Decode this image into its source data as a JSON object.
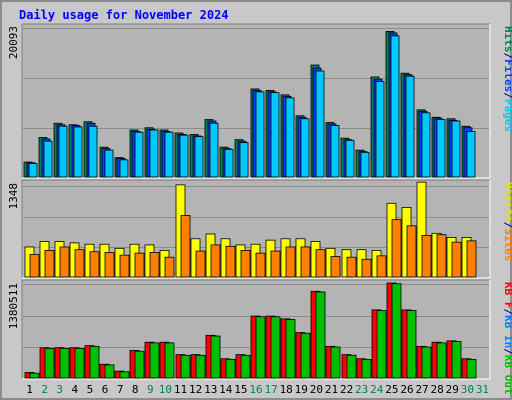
{
  "title": "Daily usage for November 2024",
  "colors": {
    "hits": "#00805c",
    "files": "#0040ff",
    "pages": "#00c8ff",
    "visits": "#ffff00",
    "sites": "#ff8000",
    "kb_out": "#00c000",
    "kb_in": "#0080ff",
    "kb_f": "#ff0000",
    "weekend_day": "#00805c",
    "weekday": "#000000"
  },
  "chart_data": {
    "type": "bar",
    "days": [
      "1",
      "2",
      "3",
      "4",
      "5",
      "6",
      "7",
      "8",
      "9",
      "10",
      "11",
      "12",
      "13",
      "14",
      "15",
      "16",
      "17",
      "18",
      "19",
      "20",
      "21",
      "22",
      "23",
      "24",
      "25",
      "26",
      "27",
      "28",
      "29",
      "30",
      "31"
    ],
    "weekend_days": [
      "2",
      "3",
      "9",
      "10",
      "16",
      "17",
      "23",
      "24",
      "30",
      "31"
    ],
    "panels": [
      {
        "id": "hits-files-pages",
        "ymax_label": "20093",
        "ymax": 20093,
        "legend": [
          {
            "text": "Hits",
            "color": "#00805c"
          },
          {
            "text": "/",
            "color": "#000080"
          },
          {
            "text": "Files",
            "color": "#0040ff"
          },
          {
            "text": "/",
            "color": "#000080"
          },
          {
            "text": "Pages",
            "color": "#00c8ff"
          }
        ],
        "series": [
          {
            "name": "Hits",
            "values": [
              2000,
              5300,
              7200,
              7000,
              7400,
              4000,
              2600,
              6300,
              6600,
              6300,
              5900,
              5700,
              7700,
              4000,
              5000,
              11800,
              11600,
              11000,
              8200,
              15000,
              7300,
              5200,
              3600,
              13400,
              19500,
              13900,
              9000,
              8000,
              7800,
              6800,
              0
            ]
          },
          {
            "name": "Files",
            "values": [
              1900,
              5100,
              7000,
              6900,
              7200,
              3800,
              2500,
              6100,
              6400,
              6100,
              5700,
              5500,
              7500,
              3800,
              4800,
              11600,
              11400,
              10800,
              8000,
              14600,
              7100,
              5000,
              3400,
              13100,
              19300,
              13700,
              8800,
              7900,
              7600,
              6600,
              0
            ]
          },
          {
            "name": "Pages",
            "values": [
              1800,
              4800,
              6800,
              6700,
              6800,
              3600,
              2300,
              6000,
              6300,
              6000,
              5600,
              5400,
              7200,
              3700,
              4600,
              11400,
              11300,
              10600,
              7800,
              14200,
              6900,
              4900,
              3300,
              12800,
              18900,
              13500,
              8600,
              7700,
              7500,
              6100,
              0
            ]
          }
        ]
      },
      {
        "id": "visits-sites",
        "ymax_label": "1348",
        "ymax": 1348,
        "legend": [
          {
            "text": "Visits",
            "color": "#e0e000"
          },
          {
            "text": "/",
            "color": "#000080"
          },
          {
            "text": "Sites",
            "color": "#ff8000"
          }
        ],
        "series": [
          {
            "name": "Visits",
            "values": [
              440,
              520,
              520,
              500,
              480,
              480,
              420,
              480,
              470,
              390,
              1350,
              560,
              630,
              560,
              470,
              480,
              540,
              560,
              560,
              520,
              420,
              400,
              400,
              390,
              1080,
              1020,
              1390,
              640,
              580,
              580,
              0
            ]
          },
          {
            "name": "Sites",
            "values": [
              330,
              390,
              440,
              400,
              370,
              360,
              320,
              350,
              360,
              290,
              900,
              380,
              470,
              450,
              390,
              350,
              380,
              440,
              440,
              400,
              300,
              290,
              260,
              310,
              840,
              750,
              610,
              620,
              510,
              530,
              0
            ]
          }
        ]
      },
      {
        "id": "kbytes",
        "ymax_label": "1380511",
        "ymax": 1380511,
        "legend": [
          {
            "text": "KB F",
            "color": "#ff0000"
          },
          {
            "text": "/",
            "color": "#000080"
          },
          {
            "text": "KB In",
            "color": "#0080ff"
          },
          {
            "text": "/",
            "color": "#000080"
          },
          {
            "text": "KB Out",
            "color": "#00c000"
          }
        ],
        "series": [
          {
            "name": "KB F",
            "values": [
              80000,
              440000,
              440000,
              440000,
              470000,
              200000,
              100000,
              400000,
              520000,
              520000,
              340000,
              340000,
              620000,
              280000,
              340000,
              900000,
              900000,
              860000,
              660000,
              1260000,
              460000,
              340000,
              280000,
              990000,
              1380511,
              990000,
              460000,
              520000,
              540000,
              280000,
              0
            ]
          },
          {
            "name": "KB Out",
            "values": [
              70000,
              430000,
              430000,
              430000,
              460000,
              190000,
              90000,
              390000,
              510000,
              510000,
              330000,
              330000,
              610000,
              270000,
              330000,
              890000,
              890000,
              850000,
              650000,
              1250000,
              450000,
              330000,
              270000,
              980000,
              1370000,
              980000,
              450000,
              510000,
              530000,
              270000,
              0
            ]
          }
        ]
      }
    ]
  }
}
